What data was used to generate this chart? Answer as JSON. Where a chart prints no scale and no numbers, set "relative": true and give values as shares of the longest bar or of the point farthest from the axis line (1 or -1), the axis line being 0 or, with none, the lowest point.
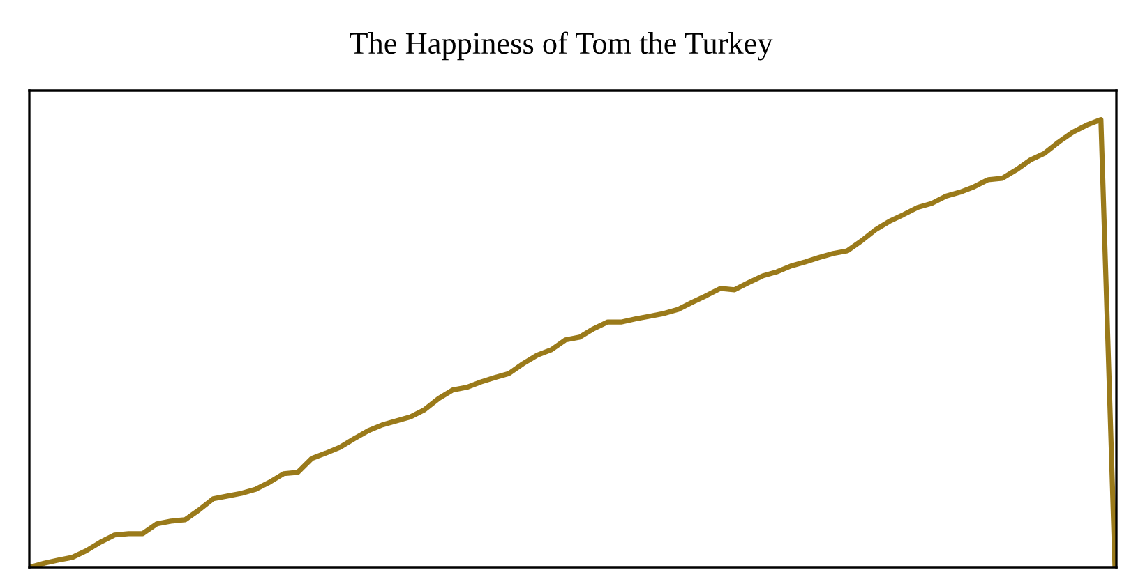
{
  "chart_data": {
    "type": "line",
    "title": "The Happiness of Tom the Turkey",
    "relative": true,
    "grid": false,
    "legend": false,
    "categories": [
      null,
      null,
      null,
      null,
      null,
      null,
      null,
      null,
      null,
      null,
      null,
      null,
      null,
      null,
      null,
      null,
      null,
      null,
      null,
      null,
      null,
      null,
      null,
      null,
      null,
      null,
      null,
      null,
      null,
      null,
      null,
      null,
      null,
      null,
      null,
      null,
      null,
      null,
      null,
      null,
      null,
      null,
      null,
      null,
      null,
      null,
      null,
      null,
      null,
      null,
      null,
      null,
      null,
      null,
      null,
      null,
      null,
      null,
      null,
      null,
      null,
      null,
      null,
      null,
      null,
      null,
      null,
      null,
      null,
      null,
      null,
      null,
      null,
      null,
      null,
      null,
      null,
      null
    ],
    "series": [
      {
        "color": "#9a7a1a",
        "values": [
          0,
          0.009,
          0.016,
          0.022,
          0.037,
          0.056,
          0.072,
          0.075,
          0.075,
          0.097,
          0.103,
          0.106,
          0.128,
          0.153,
          0.159,
          0.165,
          0.174,
          0.19,
          0.209,
          0.212,
          0.243,
          0.255,
          0.268,
          0.287,
          0.305,
          0.318,
          0.327,
          0.336,
          0.352,
          0.377,
          0.396,
          0.402,
          0.414,
          0.424,
          0.433,
          0.455,
          0.474,
          0.486,
          0.508,
          0.514,
          0.533,
          0.548,
          0.548,
          0.555,
          0.561,
          0.567,
          0.576,
          0.592,
          0.607,
          0.623,
          0.62,
          0.636,
          0.651,
          0.66,
          0.673,
          0.682,
          0.692,
          0.701,
          0.707,
          0.729,
          0.754,
          0.773,
          0.788,
          0.804,
          0.813,
          0.829,
          0.838,
          0.85,
          0.866,
          0.869,
          0.888,
          0.91,
          0.925,
          0.95,
          0.972,
          0.988,
          1,
          0
        ]
      }
    ]
  }
}
